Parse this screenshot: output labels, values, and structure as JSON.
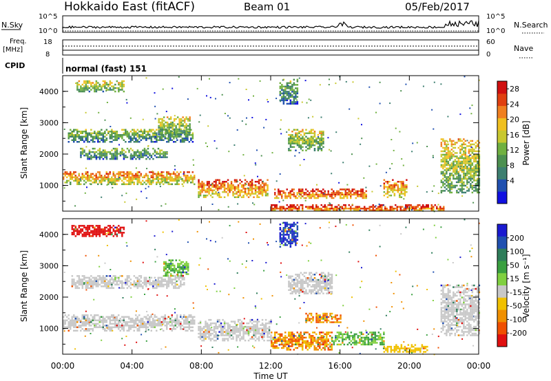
{
  "header": {
    "title": "Hokkaido East (fitACF)",
    "beam": "Beam 01",
    "date": "05/Feb/2017"
  },
  "top_panels": {
    "nsky_label": "N.Sky",
    "nsky_ticks": [
      "10^5",
      "10^0"
    ],
    "nsearch_label": "N.Search",
    "nsearch_ticks": [
      "10^5",
      "10^0"
    ],
    "freq_label": "Freq.",
    "freq_unit": "[MHz]",
    "freq_ticks": [
      "18",
      "8"
    ],
    "nave_label": "Nave",
    "nave_ticks": [
      "60",
      "0"
    ],
    "cpid_label": "CPID",
    "cpid_value": "normal (fast) 151"
  },
  "chart_data": [
    {
      "type": "heatmap",
      "name": "power",
      "ylabel": "Slant Range [km]",
      "yticks": [
        1000,
        2000,
        3000,
        4000
      ],
      "ylim": [
        180,
        4500
      ],
      "xlim_hours": [
        0,
        24
      ],
      "colorbar": {
        "label": "Power [dB]",
        "ticks": [
          "4",
          "8",
          "12",
          "16",
          "20",
          "24",
          "28"
        ],
        "colors": [
          "#1010e0",
          "#2050b0",
          "#3d7f70",
          "#4c9050",
          "#70b040",
          "#c8c830",
          "#f0c020",
          "#f08020",
          "#e04010",
          "#d01010"
        ]
      },
      "bands": [
        {
          "t0": 0.0,
          "t1": 7.6,
          "r0": 1050,
          "r1": 1450,
          "level": 0.65
        },
        {
          "t0": 0.3,
          "t1": 7.5,
          "r0": 2400,
          "r1": 2800,
          "level": 0.35
        },
        {
          "t0": 0.8,
          "t1": 3.5,
          "r0": 4000,
          "r1": 4350,
          "level": 0.45
        },
        {
          "t0": 1.0,
          "t1": 6.0,
          "r0": 1850,
          "r1": 2200,
          "level": 0.3
        },
        {
          "t0": 5.5,
          "t1": 7.3,
          "r0": 2600,
          "r1": 3200,
          "level": 0.45
        },
        {
          "t0": 7.8,
          "t1": 11.8,
          "r0": 650,
          "r1": 1200,
          "level": 0.75
        },
        {
          "t0": 12.2,
          "t1": 17.5,
          "r0": 580,
          "r1": 900,
          "level": 0.8
        },
        {
          "t0": 13.0,
          "t1": 15.0,
          "r0": 2100,
          "r1": 2800,
          "level": 0.45
        },
        {
          "t0": 12.5,
          "t1": 13.5,
          "r0": 3600,
          "r1": 4400,
          "level": 0.3
        },
        {
          "t0": 18.5,
          "t1": 19.8,
          "r0": 650,
          "r1": 1200,
          "level": 0.7
        },
        {
          "t0": 21.8,
          "t1": 24.0,
          "r0": 800,
          "r1": 2500,
          "level": 0.5
        },
        {
          "t0": 12.0,
          "t1": 22.0,
          "r0": 200,
          "r1": 400,
          "level": 0.85
        }
      ]
    },
    {
      "type": "heatmap",
      "name": "velocity",
      "xlabel": "Time UT",
      "ylabel": "Slant Range [km]",
      "xticks": [
        "00:00",
        "04:00",
        "08:00",
        "12:00",
        "16:00",
        "20:00",
        "00:00"
      ],
      "yticks": [
        1000,
        2000,
        3000,
        4000
      ],
      "ylim": [
        180,
        4500
      ],
      "xlim_hours": [
        0,
        24
      ],
      "colorbar": {
        "label": "Velocity [m s⁻¹]",
        "ticks": [
          "200",
          "100",
          "50",
          "15",
          "-15",
          "-50",
          "-100",
          "-200"
        ],
        "colors": [
          "#1a1ad0",
          "#2050b0",
          "#2e7d5a",
          "#3aa040",
          "#80d040",
          "#c8c8c8",
          "#f0c000",
          "#f09000",
          "#f05000",
          "#e01010"
        ]
      },
      "bands": [
        {
          "t0": 0.0,
          "t1": 7.6,
          "r0": 950,
          "r1": 1450,
          "v": "ground"
        },
        {
          "t0": 0.5,
          "t1": 7.0,
          "r0": 2300,
          "r1": 2700,
          "v": "ground"
        },
        {
          "t0": 0.5,
          "t1": 3.5,
          "r0": 3950,
          "r1": 4300,
          "v": "neg-high"
        },
        {
          "t0": 5.8,
          "t1": 7.2,
          "r0": 2700,
          "r1": 3200,
          "v": "pos-low"
        },
        {
          "t0": 7.8,
          "t1": 12.0,
          "r0": 600,
          "r1": 1300,
          "v": "ground"
        },
        {
          "t0": 12.0,
          "t1": 15.5,
          "r0": 350,
          "r1": 900,
          "v": "neg-mid"
        },
        {
          "t0": 15.5,
          "t1": 18.5,
          "r0": 500,
          "r1": 900,
          "v": "pos-low"
        },
        {
          "t0": 13.0,
          "t1": 15.5,
          "r0": 2100,
          "r1": 2800,
          "v": "ground"
        },
        {
          "t0": 14.0,
          "t1": 16.0,
          "r0": 1200,
          "r1": 1500,
          "v": "neg-mid"
        },
        {
          "t0": 18.5,
          "t1": 21.0,
          "r0": 250,
          "r1": 500,
          "v": "neg-low"
        },
        {
          "t0": 21.8,
          "t1": 24.0,
          "r0": 800,
          "r1": 2400,
          "v": "ground"
        },
        {
          "t0": 12.5,
          "t1": 13.5,
          "r0": 3600,
          "r1": 4400,
          "v": "pos-high"
        }
      ]
    }
  ]
}
